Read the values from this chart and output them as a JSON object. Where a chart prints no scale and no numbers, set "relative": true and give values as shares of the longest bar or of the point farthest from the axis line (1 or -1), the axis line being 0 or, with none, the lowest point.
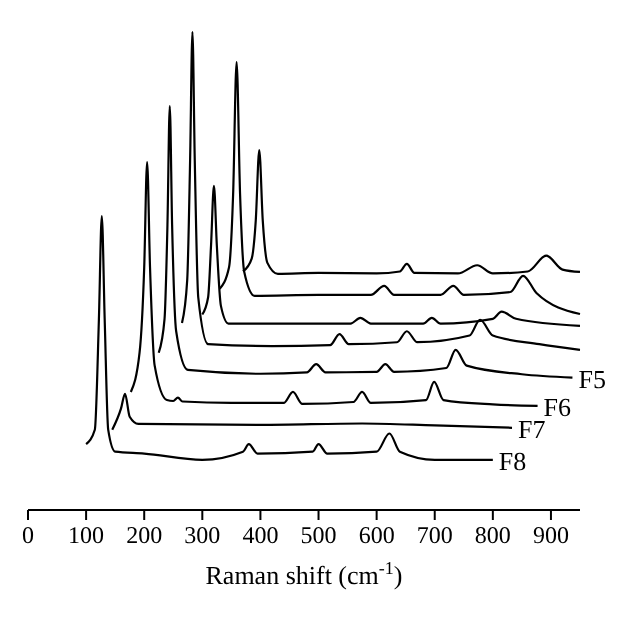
{
  "chart_data": {
    "type": "line",
    "relative": true,
    "xlabel": "Raman shift (cm$^{-1}$)",
    "xlim": [
      0,
      950
    ],
    "xticks": [
      0,
      100,
      200,
      300,
      400,
      500,
      600,
      700,
      800,
      900
    ],
    "series": [
      {
        "color": "#000000",
        "x": [
          370,
          385,
          392,
          398,
          404,
          412,
          430,
          500,
          600,
          640,
          652,
          665,
          740,
          773,
          800,
          860,
          892,
          920,
          950
        ],
        "values": [
          0.499,
          0.526,
          0.606,
          0.753,
          0.606,
          0.517,
          0.494,
          0.496,
          0.495,
          0.499,
          0.515,
          0.496,
          0.495,
          0.512,
          0.495,
          0.499,
          0.532,
          0.503,
          0.498
        ]
      },
      {
        "color": "#000000",
        "x": [
          330,
          346,
          353,
          359,
          365,
          372,
          390,
          500,
          590,
          613,
          630,
          710,
          732,
          750,
          830,
          852,
          875,
          950
        ],
        "values": [
          0.463,
          0.508,
          0.66,
          0.937,
          0.66,
          0.499,
          0.448,
          0.45,
          0.45,
          0.469,
          0.45,
          0.45,
          0.469,
          0.45,
          0.456,
          0.49,
          0.454,
          0.41
        ]
      },
      {
        "color": "#000000",
        "x": [
          300,
          310,
          315,
          320,
          325,
          332,
          345,
          450,
          555,
          572,
          590,
          680,
          695,
          710,
          800,
          815,
          840,
          950
        ],
        "values": [
          0.409,
          0.445,
          0.553,
          0.678,
          0.553,
          0.427,
          0.39,
          0.39,
          0.39,
          0.402,
          0.39,
          0.39,
          0.402,
          0.39,
          0.4,
          0.415,
          0.4,
          0.385
        ]
      },
      {
        "color": "#000000",
        "x": [
          265,
          274,
          279,
          283,
          287,
          293,
          310,
          420,
          520,
          536,
          552,
          635,
          652,
          670,
          760,
          778,
          800,
          880,
          950
        ],
        "values": [
          0.391,
          0.481,
          0.732,
          1,
          0.732,
          0.445,
          0.347,
          0.343,
          0.345,
          0.368,
          0.347,
          0.351,
          0.374,
          0.351,
          0.365,
          0.398,
          0.365,
          0.347,
          0.335
        ]
      },
      {
        "name": "F5",
        "color": "#000000",
        "x": [
          225,
          235,
          240,
          244,
          248,
          255,
          275,
          400,
          480,
          496,
          512,
          600,
          615,
          630,
          720,
          736,
          755,
          850,
          937
        ],
        "values": [
          0.329,
          0.4,
          0.597,
          0.845,
          0.597,
          0.374,
          0.293,
          0.285,
          0.288,
          0.305,
          0.288,
          0.289,
          0.305,
          0.289,
          0.297,
          0.335,
          0.302,
          0.284,
          0.277
        ]
      },
      {
        "name": "F6",
        "color": "#000000",
        "x": [
          177,
          192,
          200,
          205,
          210,
          218,
          239,
          250,
          258,
          266,
          350,
          440,
          456,
          472,
          560,
          575,
          590,
          685,
          699,
          715,
          800,
          877
        ],
        "values": [
          0.247,
          0.329,
          0.508,
          0.728,
          0.508,
          0.302,
          0.23,
          0.228,
          0.235,
          0.227,
          0.224,
          0.224,
          0.247,
          0.222,
          0.226,
          0.247,
          0.224,
          0.23,
          0.268,
          0.23,
          0.221,
          0.218
        ]
      },
      {
        "name": "F7",
        "color": "#000000",
        "x": [
          145,
          160,
          167,
          175,
          190,
          400,
          575,
          700,
          833
        ],
        "values": [
          0.168,
          0.212,
          0.243,
          0.195,
          0.18,
          0.178,
          0.181,
          0.177,
          0.172
        ]
      },
      {
        "name": "F8",
        "color": "#000000",
        "x": [
          100,
          115,
          122,
          127,
          132,
          138,
          150,
          200,
          300,
          370,
          380,
          395,
          490,
          500,
          515,
          600,
          622,
          640,
          700,
          800
        ],
        "values": [
          0.138,
          0.168,
          0.398,
          0.615,
          0.398,
          0.168,
          0.122,
          0.118,
          0.105,
          0.122,
          0.138,
          0.118,
          0.122,
          0.138,
          0.118,
          0.122,
          0.16,
          0.122,
          0.105,
          0.105
        ]
      }
    ]
  }
}
